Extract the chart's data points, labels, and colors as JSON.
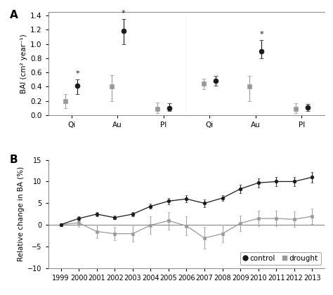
{
  "panel_A": {
    "left": {
      "categories": [
        "Qi",
        "Au",
        "Pl"
      ],
      "control_mean": [
        0.41,
        1.18,
        0.1
      ],
      "control_err_upper": [
        0.09,
        0.17,
        0.07
      ],
      "control_err_lower": [
        0.11,
        0.18,
        0.04
      ],
      "drought_mean": [
        0.2,
        0.4,
        0.085
      ],
      "drought_err_upper": [
        0.1,
        0.16,
        0.09
      ],
      "drought_err_lower": [
        0.1,
        0.2,
        0.055
      ],
      "sig_control": [
        true,
        true,
        false
      ],
      "sig_drought": [
        false,
        false,
        false
      ]
    },
    "right": {
      "categories": [
        "Qi",
        "Au",
        "Pl"
      ],
      "control_mean": [
        0.48,
        0.9,
        0.105
      ],
      "control_err_upper": [
        0.07,
        0.15,
        0.055
      ],
      "control_err_lower": [
        0.07,
        0.1,
        0.045
      ],
      "drought_mean": [
        0.44,
        0.4,
        0.09
      ],
      "drought_err_upper": [
        0.07,
        0.15,
        0.075
      ],
      "drought_err_lower": [
        0.07,
        0.2,
        0.055
      ],
      "sig_control": [
        false,
        true,
        false
      ],
      "sig_drought": [
        false,
        false,
        false
      ]
    },
    "ylim": [
      0.0,
      1.45
    ],
    "yticks": [
      0.0,
      0.2,
      0.4,
      0.6,
      0.8,
      1.0,
      1.2,
      1.4
    ],
    "ylabel": "BAI (cm² year⁻¹)"
  },
  "panel_B": {
    "years": [
      1999,
      2000,
      2001,
      2002,
      2003,
      2004,
      2005,
      2006,
      2007,
      2008,
      2009,
      2010,
      2011,
      2012,
      2013
    ],
    "control_mean": [
      0.1,
      1.5,
      2.5,
      1.7,
      2.5,
      4.3,
      5.5,
      6.0,
      5.0,
      6.2,
      8.3,
      9.7,
      10.0,
      10.0,
      11.0
    ],
    "control_err": [
      0.3,
      0.5,
      0.5,
      0.4,
      0.5,
      0.6,
      0.7,
      0.8,
      0.9,
      0.7,
      0.9,
      1.0,
      1.0,
      1.0,
      1.2
    ],
    "drought_mean": [
      0.1,
      0.5,
      -1.5,
      -2.0,
      -2.0,
      -0.05,
      1.0,
      -0.2,
      -3.0,
      -2.0,
      0.4,
      1.5,
      1.5,
      1.3,
      2.0
    ],
    "drought_err": [
      0.3,
      1.0,
      1.5,
      1.5,
      1.8,
      2.0,
      2.0,
      2.2,
      2.5,
      2.0,
      1.8,
      1.8,
      1.8,
      1.8,
      1.8
    ],
    "ylim": [
      -10,
      15
    ],
    "yticks": [
      -10,
      -5,
      0,
      5,
      10,
      15
    ],
    "ylabel": "Relative change in BA (%)"
  },
  "control_color": "#1a1a1a",
  "drought_color": "#999999",
  "background_color": "#ffffff"
}
